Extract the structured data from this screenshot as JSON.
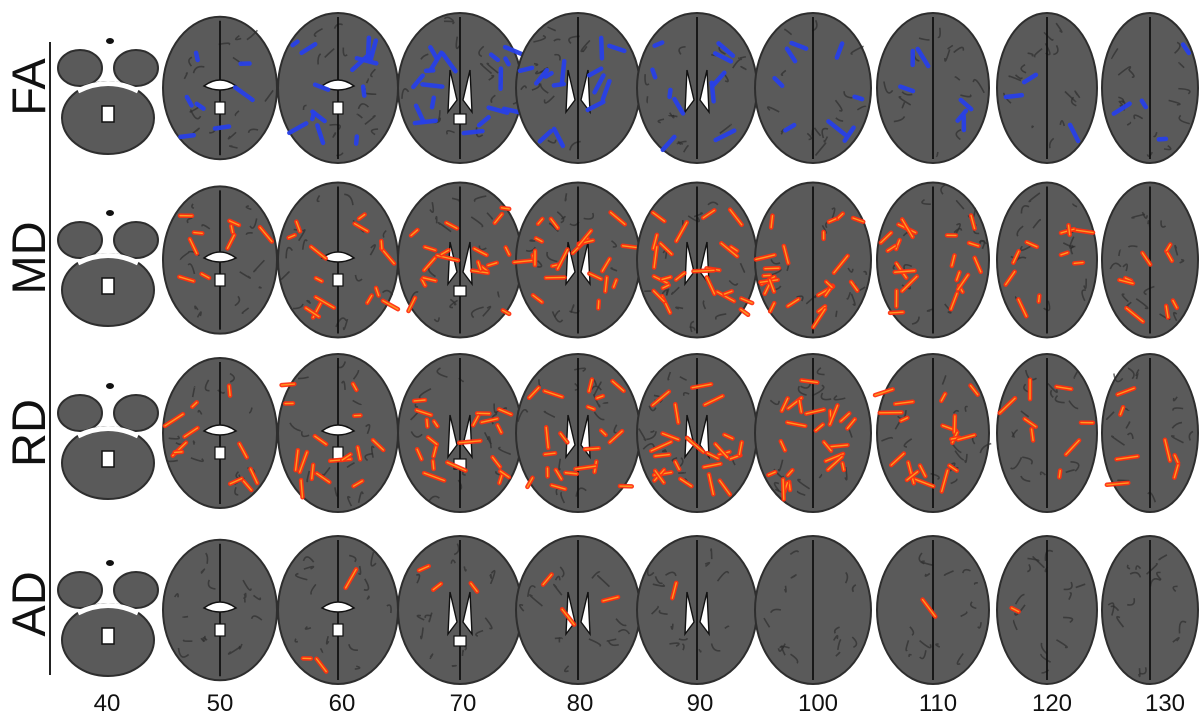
{
  "rows": [
    {
      "label": "FA",
      "color": "#2840e8",
      "intensity": [
        0.25,
        0.3,
        0.6,
        0.75,
        0.6,
        0.45,
        0.35,
        0.25,
        0.15,
        0.2
      ]
    },
    {
      "label": "MD",
      "color": "#ff3010",
      "intensity": [
        0.35,
        0.4,
        0.65,
        0.8,
        0.9,
        1.0,
        1.0,
        0.85,
        0.45,
        0.35
      ]
    },
    {
      "label": "RD",
      "color": "#ff3010",
      "intensity": [
        0.4,
        0.45,
        0.7,
        0.85,
        0.9,
        1.0,
        1.0,
        0.8,
        0.35,
        0.3
      ]
    },
    {
      "label": "AD",
      "color": "#ff3010",
      "intensity": [
        0.0,
        0.0,
        0.15,
        0.12,
        0.12,
        0.04,
        0.0,
        0.03,
        0.03,
        0.0
      ]
    }
  ],
  "slices": [
    "40",
    "50",
    "60",
    "70",
    "80",
    "90",
    "100",
    "110",
    "120",
    "130"
  ],
  "colors": {
    "brain": "#5a5a5a",
    "brain_dark": "#2e2e2e",
    "background": "#ffffff"
  }
}
